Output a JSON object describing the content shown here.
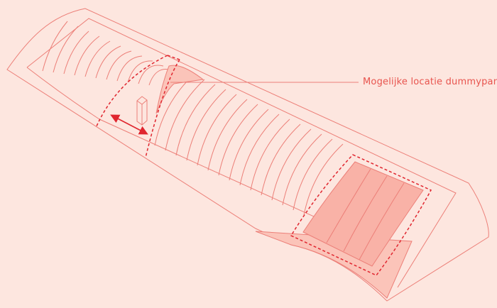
{
  "callout": {
    "label": "Mogelijke locatie dummypanelen"
  },
  "colors": {
    "background": "#fde6df",
    "line": "#ec7f78",
    "accent": "#e0262f",
    "panel_fill": "#f9b2a7",
    "panel_fill_light": "#fbc4b9",
    "callout_text": "#e8544e"
  }
}
